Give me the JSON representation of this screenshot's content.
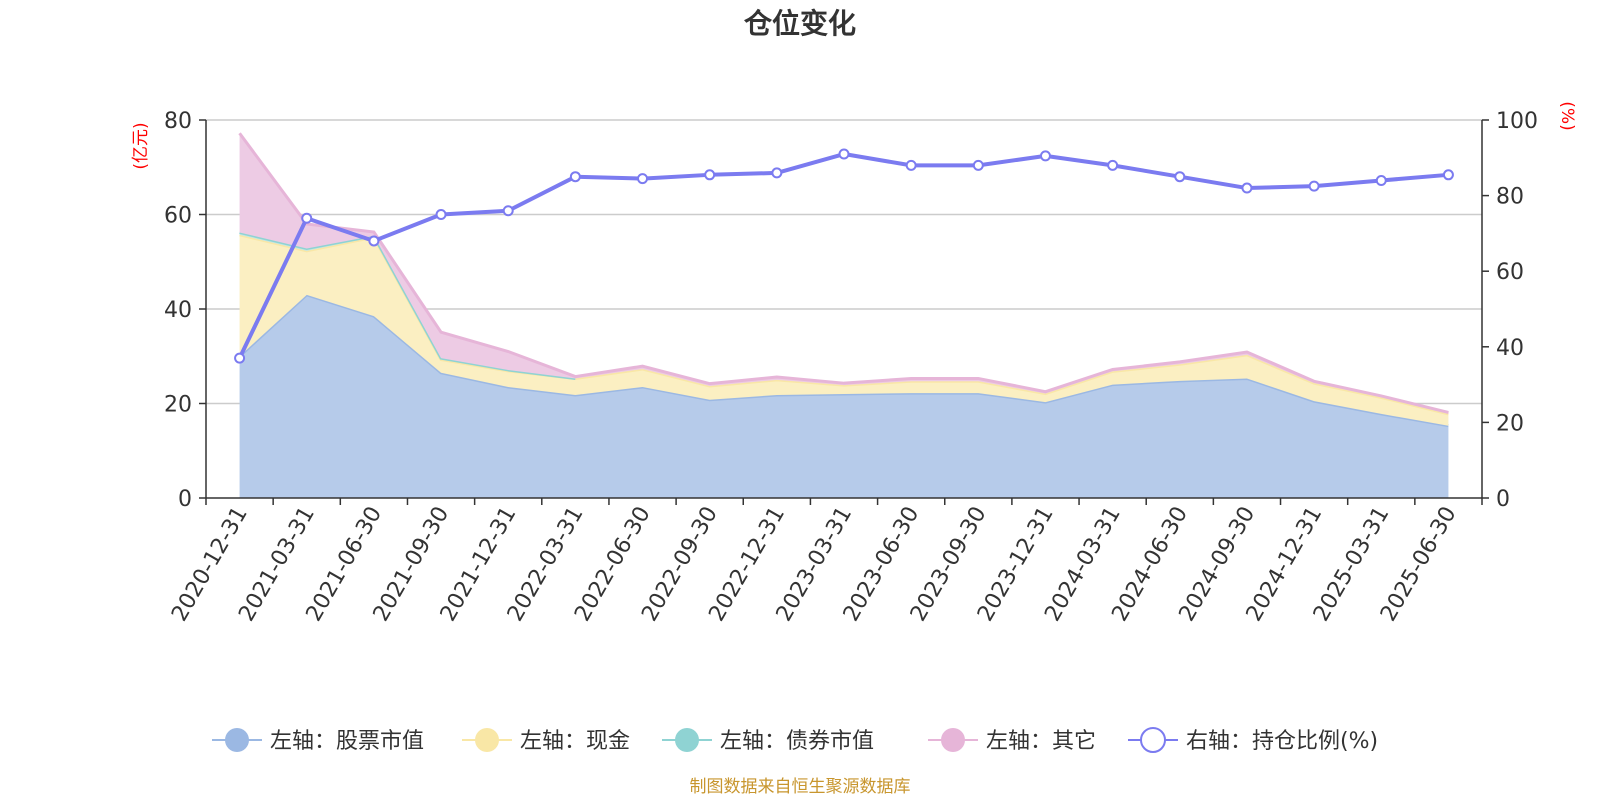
{
  "chart_data": {
    "type": "area",
    "title": "仓位变化",
    "left_axis_unit": "(亿元)",
    "right_axis_unit": "(%)",
    "ylim_left": [
      0,
      80
    ],
    "ylim_right": [
      0,
      100
    ],
    "left_ticks": [
      "0",
      "20",
      "40",
      "60",
      "80"
    ],
    "right_ticks": [
      "0",
      "20",
      "40",
      "60",
      "80",
      "100"
    ],
    "grid": true,
    "legend_position": "bottom",
    "categories": [
      "2020-12-31",
      "2021-03-31",
      "2021-06-30",
      "2021-09-30",
      "2021-12-31",
      "2022-03-31",
      "2022-06-30",
      "2022-09-30",
      "2022-12-31",
      "2023-03-31",
      "2023-06-30",
      "2023-09-30",
      "2023-12-31",
      "2024-03-31",
      "2024-06-30",
      "2024-09-30",
      "2024-12-31",
      "2025-03-31",
      "2025-06-30"
    ],
    "series": [
      {
        "name": "左轴：股票市值",
        "axis": "left",
        "stack": true,
        "color": "#9bb8e3",
        "fill": "#b6cbea",
        "values": [
          30,
          43,
          38.5,
          26.5,
          23.5,
          21.8,
          23.5,
          20.8,
          21.8,
          22,
          22.2,
          22.2,
          20.3,
          24,
          24.8,
          25.3,
          20.5,
          17.8,
          15.3
        ]
      },
      {
        "name": "左轴：现金",
        "axis": "left",
        "stack": true,
        "color": "#f9e7a6",
        "fill": "#fbefc2",
        "values": [
          25.7,
          9.3,
          16.7,
          2.8,
          3.4,
          3.5,
          3.8,
          2.9,
          3.2,
          1.9,
          2.5,
          2.5,
          1.8,
          2.8,
          3.5,
          5,
          3.8,
          3.5,
          2.5
        ]
      },
      {
        "name": "左轴：债券市值",
        "axis": "left",
        "stack": true,
        "color": "#8fd3d3",
        "fill": "#c4e7e5",
        "values": [
          0.5,
          0.5,
          0.3,
          0.3,
          0.2,
          0,
          0,
          0,
          0,
          0,
          0,
          0,
          0,
          0,
          0,
          0,
          0,
          0,
          0
        ]
      },
      {
        "name": "左轴：其它",
        "axis": "left",
        "stack": true,
        "color": "#e6b5d8",
        "fill": "#edcbe4",
        "values": [
          21,
          5.2,
          0.8,
          5.5,
          3.9,
          0.4,
          0.6,
          0.5,
          0.6,
          0.4,
          0.6,
          0.6,
          0.4,
          0.4,
          0.5,
          0.6,
          0.4,
          0.3,
          0.3
        ]
      },
      {
        "name": "右轴：持仓比例(%)",
        "axis": "right",
        "type": "line",
        "color": "#7b7bf0",
        "values": [
          37,
          74,
          68,
          75,
          76,
          85,
          84.5,
          85.5,
          86,
          91,
          88,
          88,
          90.5,
          88,
          85,
          82,
          82.5,
          84,
          85.5
        ]
      }
    ],
    "source": "制图数据来自恒生聚源数据库"
  }
}
